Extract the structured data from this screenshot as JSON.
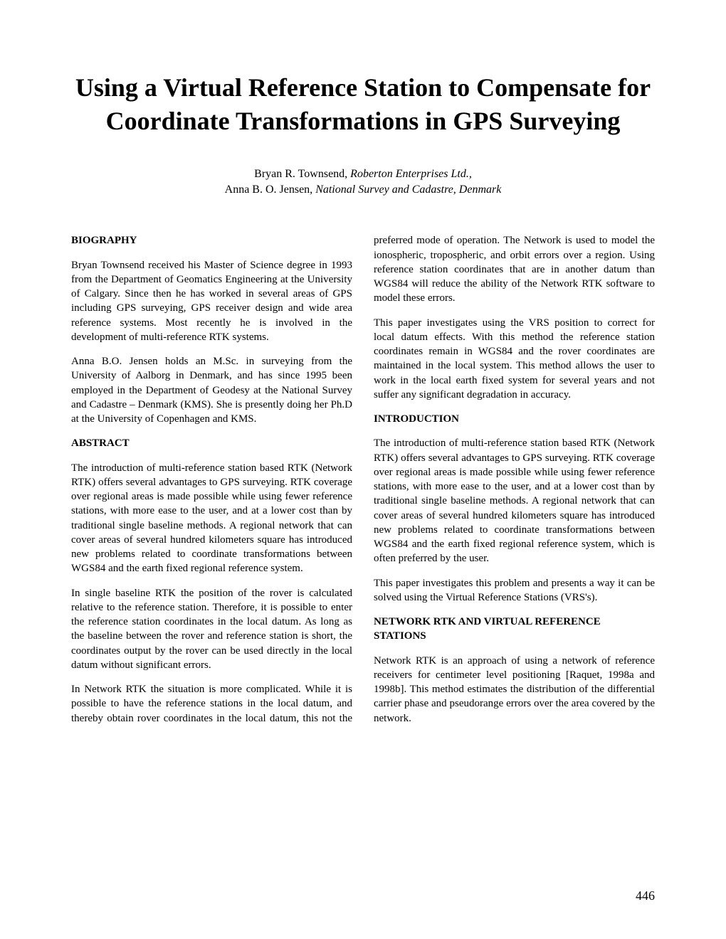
{
  "title": "Using a Virtual Reference Station to Compensate for Coordinate Transformations in GPS Surveying",
  "authors": {
    "line1_name": "Bryan R. Townsend, ",
    "line1_affil": "Roberton Enterprises Ltd.,",
    "line2_name": "Anna B. O. Jensen, ",
    "line2_affil": "National Survey and Cadastre, Denmark"
  },
  "sections": {
    "biography": {
      "heading": "BIOGRAPHY",
      "p1": "Bryan Townsend received his Master of Science degree in 1993 from the Department of Geomatics Engineering at the University of Calgary. Since then he has worked in several areas of GPS including GPS surveying, GPS receiver design and wide area reference systems. Most recently he is involved in the development of multi-reference RTK systems.",
      "p2": "Anna B.O. Jensen holds an M.Sc. in surveying from the University of Aalborg in Denmark, and has since 1995 been employed in the Department of Geodesy at the National Survey and Cadastre – Denmark (KMS). She is presently doing her Ph.D at the University of Copenhagen and KMS."
    },
    "abstract": {
      "heading": "ABSTRACT",
      "p1": "The introduction of multi-reference station based RTK (Network RTK) offers several advantages to GPS surveying. RTK coverage over regional areas is made possible while using fewer reference stations, with more ease to the user, and at a lower cost than by traditional single baseline methods. A regional network that can cover areas of several hundred kilometers square has introduced new problems related to coordinate transformations between WGS84 and the earth fixed regional reference system.",
      "p2": "In single baseline RTK the position of the rover is calculated relative to the reference station. Therefore, it is possible to enter the reference station coordinates in the local datum. As long as the baseline between the rover and reference station is short, the coordinates output by the rover can be used directly in the local datum without significant errors.",
      "p3": "In Network RTK the situation is more complicated. While it is possible to have the reference stations in the local datum, and thereby obtain rover coordinates in the local datum, this not the preferred mode of operation. The Network is used to model the ionospheric, tropospheric, and orbit errors over a region. Using reference station coordinates that are in another datum than WGS84 will reduce the ability of the Network RTK software to model these errors.",
      "p4": "This paper investigates using the VRS position to correct for local datum effects. With this method the reference station coordinates remain in WGS84 and the rover coordinates are maintained in the local system. This method allows the user to work in the local earth fixed system for several years and not suffer any significant degradation in accuracy."
    },
    "introduction": {
      "heading": "INTRODUCTION",
      "p1": "The introduction of multi-reference station based RTK (Network RTK) offers several advantages to GPS surveying. RTK coverage over regional areas is made possible while using fewer reference stations, with more ease to the user, and at a lower cost than by traditional single baseline methods. A regional network that can cover areas of several hundred kilometers square has introduced new problems related to coordinate transformations between WGS84 and the earth fixed regional reference system, which is often preferred by the user.",
      "p2": "This paper investigates this problem and presents a way it can be solved using the Virtual Reference Stations (VRS's)."
    },
    "network": {
      "heading": "NETWORK RTK AND VIRTUAL REFERENCE STATIONS",
      "p1": "Network RTK is an approach of using a network of reference receivers for centimeter level positioning [Raquet, 1998a and 1998b]. This method estimates the distribution of the differential carrier phase and pseudorange errors over the area covered by the network."
    }
  },
  "page_number": "446"
}
